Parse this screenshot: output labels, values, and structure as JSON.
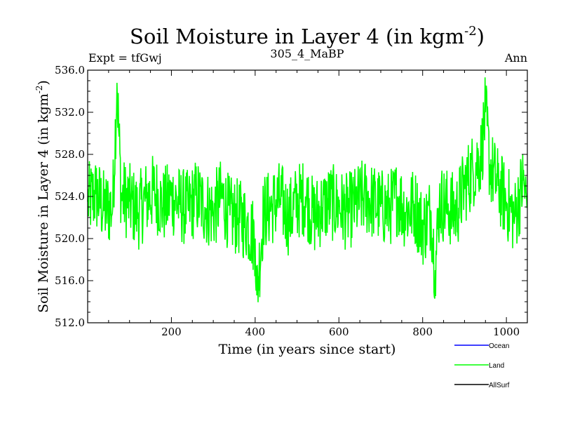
{
  "chart_data": {
    "type": "line",
    "title": "Soil Moisture in Layer 4 (in kgm",
    "title_sup": "-2",
    "title_end": ")",
    "subtitle_left": "Expt = tfGwj",
    "subtitle_center": "305_4_MaBP",
    "subtitle_right": "Ann",
    "xlabel": "Time (in years since start)",
    "ylabel": "Soil Moisture in Layer 4 (in kgm",
    "ylabel_sup": "-2",
    "ylabel_end": ")",
    "xlim": [
      0,
      1050
    ],
    "ylim": [
      512.0,
      536.0
    ],
    "x_ticks": [
      200,
      400,
      600,
      800,
      1000
    ],
    "x_tick_labels": [
      "200",
      "400",
      "600",
      "800",
      "1000"
    ],
    "y_ticks": [
      512,
      516,
      520,
      524,
      528,
      532,
      536
    ],
    "y_tick_labels": [
      "512.0",
      "516.0",
      "520.0",
      "524.0",
      "528.0",
      "532.0",
      "536.0"
    ],
    "legend": [
      {
        "name": "Ocean",
        "color": "#0000ff"
      },
      {
        "name": "Land",
        "color": "#00ff00"
      },
      {
        "name": "AllSurf",
        "color": "#000000"
      }
    ],
    "series": [
      {
        "name": "Land",
        "color": "#00ff00",
        "x": [
          0,
          20,
          40,
          60,
          70,
          80,
          100,
          120,
          140,
          160,
          180,
          200,
          220,
          240,
          260,
          280,
          300,
          320,
          340,
          360,
          380,
          400,
          404,
          420,
          440,
          460,
          480,
          500,
          520,
          540,
          560,
          580,
          600,
          620,
          640,
          660,
          680,
          700,
          720,
          740,
          760,
          780,
          800,
          820,
          830,
          840,
          860,
          880,
          900,
          920,
          940,
          950,
          960,
          980,
          1000,
          1020,
          1040,
          1050
        ],
        "values": [
          523.5,
          524.2,
          522.8,
          523.0,
          534.8,
          524.0,
          523.5,
          522.5,
          523.8,
          524.5,
          523.0,
          524.0,
          523.2,
          522.8,
          524.0,
          523.0,
          522.5,
          524.0,
          522.2,
          522.0,
          521.5,
          520.0,
          514.6,
          522.5,
          523.0,
          523.8,
          522.0,
          523.5,
          524.0,
          522.0,
          523.0,
          523.5,
          523.0,
          522.5,
          523.2,
          524.0,
          523.5,
          523.0,
          522.8,
          524.0,
          522.5,
          523.2,
          521.0,
          522.5,
          517.0,
          523.5,
          523.0,
          522.5,
          525.0,
          526.5,
          528.0,
          532.0,
          527.0,
          525.0,
          523.5,
          522.0,
          525.5,
          523.0
        ]
      }
    ]
  }
}
